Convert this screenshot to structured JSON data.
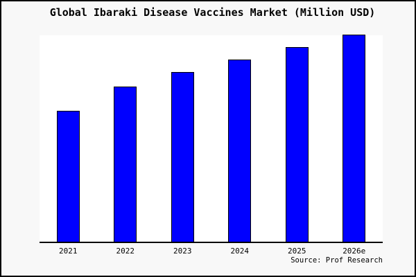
{
  "header": {
    "title": "Global Ibaraki Disease Vaccines Market (Million USD)"
  },
  "footer": {
    "source_text": "Source: Prof Research"
  },
  "colors": {
    "canvas_background": "#f8f8f8",
    "plot_background": "#ffffff",
    "bar_fill": "#0000ff",
    "bar_border": "#000000",
    "axis": "#000000",
    "frame_border": "#000000",
    "text": "#000000"
  },
  "chart_data": {
    "type": "bar",
    "title": "Global Ibaraki Disease Vaccines Market (Million USD)",
    "categories": [
      "2021",
      "2022",
      "2023",
      "2024",
      "2025",
      "2026e"
    ],
    "values": [
      63,
      75,
      82,
      88,
      94,
      100
    ],
    "xlabel": "",
    "ylabel": "",
    "ylim": [
      0,
      100
    ],
    "grid": false,
    "legend": false,
    "y_axis_labels_shown": false,
    "bar_color": "#0000ff"
  }
}
